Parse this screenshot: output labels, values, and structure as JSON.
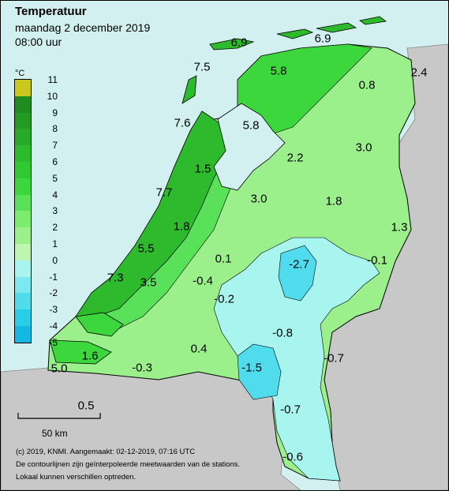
{
  "title": "Temperatuur",
  "date": "maandag 2 december 2019",
  "time": "08:00 uur",
  "legend": {
    "unit": "°C",
    "levels": [
      {
        "label": "11",
        "color": "#c8c81e"
      },
      {
        "label": "10",
        "color": "#1e8c1e"
      },
      {
        "label": "9",
        "color": "#239b23"
      },
      {
        "label": "8",
        "color": "#28aa28"
      },
      {
        "label": "7",
        "color": "#2dba2d"
      },
      {
        "label": "6",
        "color": "#32c832"
      },
      {
        "label": "5",
        "color": "#3cd73c"
      },
      {
        "label": "4",
        "color": "#5ae15a"
      },
      {
        "label": "3",
        "color": "#7ceb6e"
      },
      {
        "label": "2",
        "color": "#9cf08c"
      },
      {
        "label": "1",
        "color": "#bef5b0"
      },
      {
        "label": "0",
        "color": "#a8f5f0"
      },
      {
        "label": "-1",
        "color": "#7ce8f0"
      },
      {
        "label": "-2",
        "color": "#50dcec"
      },
      {
        "label": "-3",
        "color": "#28cde6"
      },
      {
        "label": "-4",
        "color": "#14b9e1"
      },
      {
        "label": "-5",
        "color": ""
      }
    ]
  },
  "station_values": [
    {
      "id": "v01",
      "text": "6.9"
    },
    {
      "id": "v02",
      "text": "6.9"
    },
    {
      "id": "v03",
      "text": "7.5"
    },
    {
      "id": "v04",
      "text": "5.8"
    },
    {
      "id": "v05",
      "text": "0.8"
    },
    {
      "id": "v06",
      "text": "2.4"
    },
    {
      "id": "v07",
      "text": "7.6"
    },
    {
      "id": "v08",
      "text": "5.8"
    },
    {
      "id": "v09",
      "text": "3.0"
    },
    {
      "id": "v10",
      "text": "2.2"
    },
    {
      "id": "v11",
      "text": "1.5"
    },
    {
      "id": "v12",
      "text": "7.7"
    },
    {
      "id": "v13",
      "text": "3.0"
    },
    {
      "id": "v14",
      "text": "1.8"
    },
    {
      "id": "v15",
      "text": "1.8"
    },
    {
      "id": "v16",
      "text": "1.3"
    },
    {
      "id": "v17",
      "text": "5.5"
    },
    {
      "id": "v18",
      "text": "0.1"
    },
    {
      "id": "v19",
      "text": "-2.7"
    },
    {
      "id": "v20",
      "text": "-0.1"
    },
    {
      "id": "v21",
      "text": "7.3"
    },
    {
      "id": "v22",
      "text": "3.5"
    },
    {
      "id": "v23",
      "text": "-0.4"
    },
    {
      "id": "v24",
      "text": "-0.2"
    },
    {
      "id": "v25",
      "text": "-0.8"
    },
    {
      "id": "v26",
      "text": "0.4"
    },
    {
      "id": "v27",
      "text": "1.6"
    },
    {
      "id": "v28",
      "text": "-0.7"
    },
    {
      "id": "v29",
      "text": "5.0"
    },
    {
      "id": "v30",
      "text": "-0.3"
    },
    {
      "id": "v31",
      "text": "-1.5"
    },
    {
      "id": "v32",
      "text": "0.5"
    },
    {
      "id": "v33",
      "text": "-0.7"
    },
    {
      "id": "v34",
      "text": "-0.6"
    }
  ],
  "scale_bar": {
    "label": "50 km"
  },
  "footer": {
    "line1": "(c) 2019, KNMI. Aangemaakt: 02-12-2019, 07:16 UTC",
    "line2": "De contourlijnen zijn geïnterpoleerde meetwaarden van de stations.",
    "line3": "Lokaal kunnen verschillen optreden."
  },
  "colors": {
    "sea": "#d2f0f0",
    "neighbour_land": "#c8c8c8",
    "border": "#000000"
  }
}
